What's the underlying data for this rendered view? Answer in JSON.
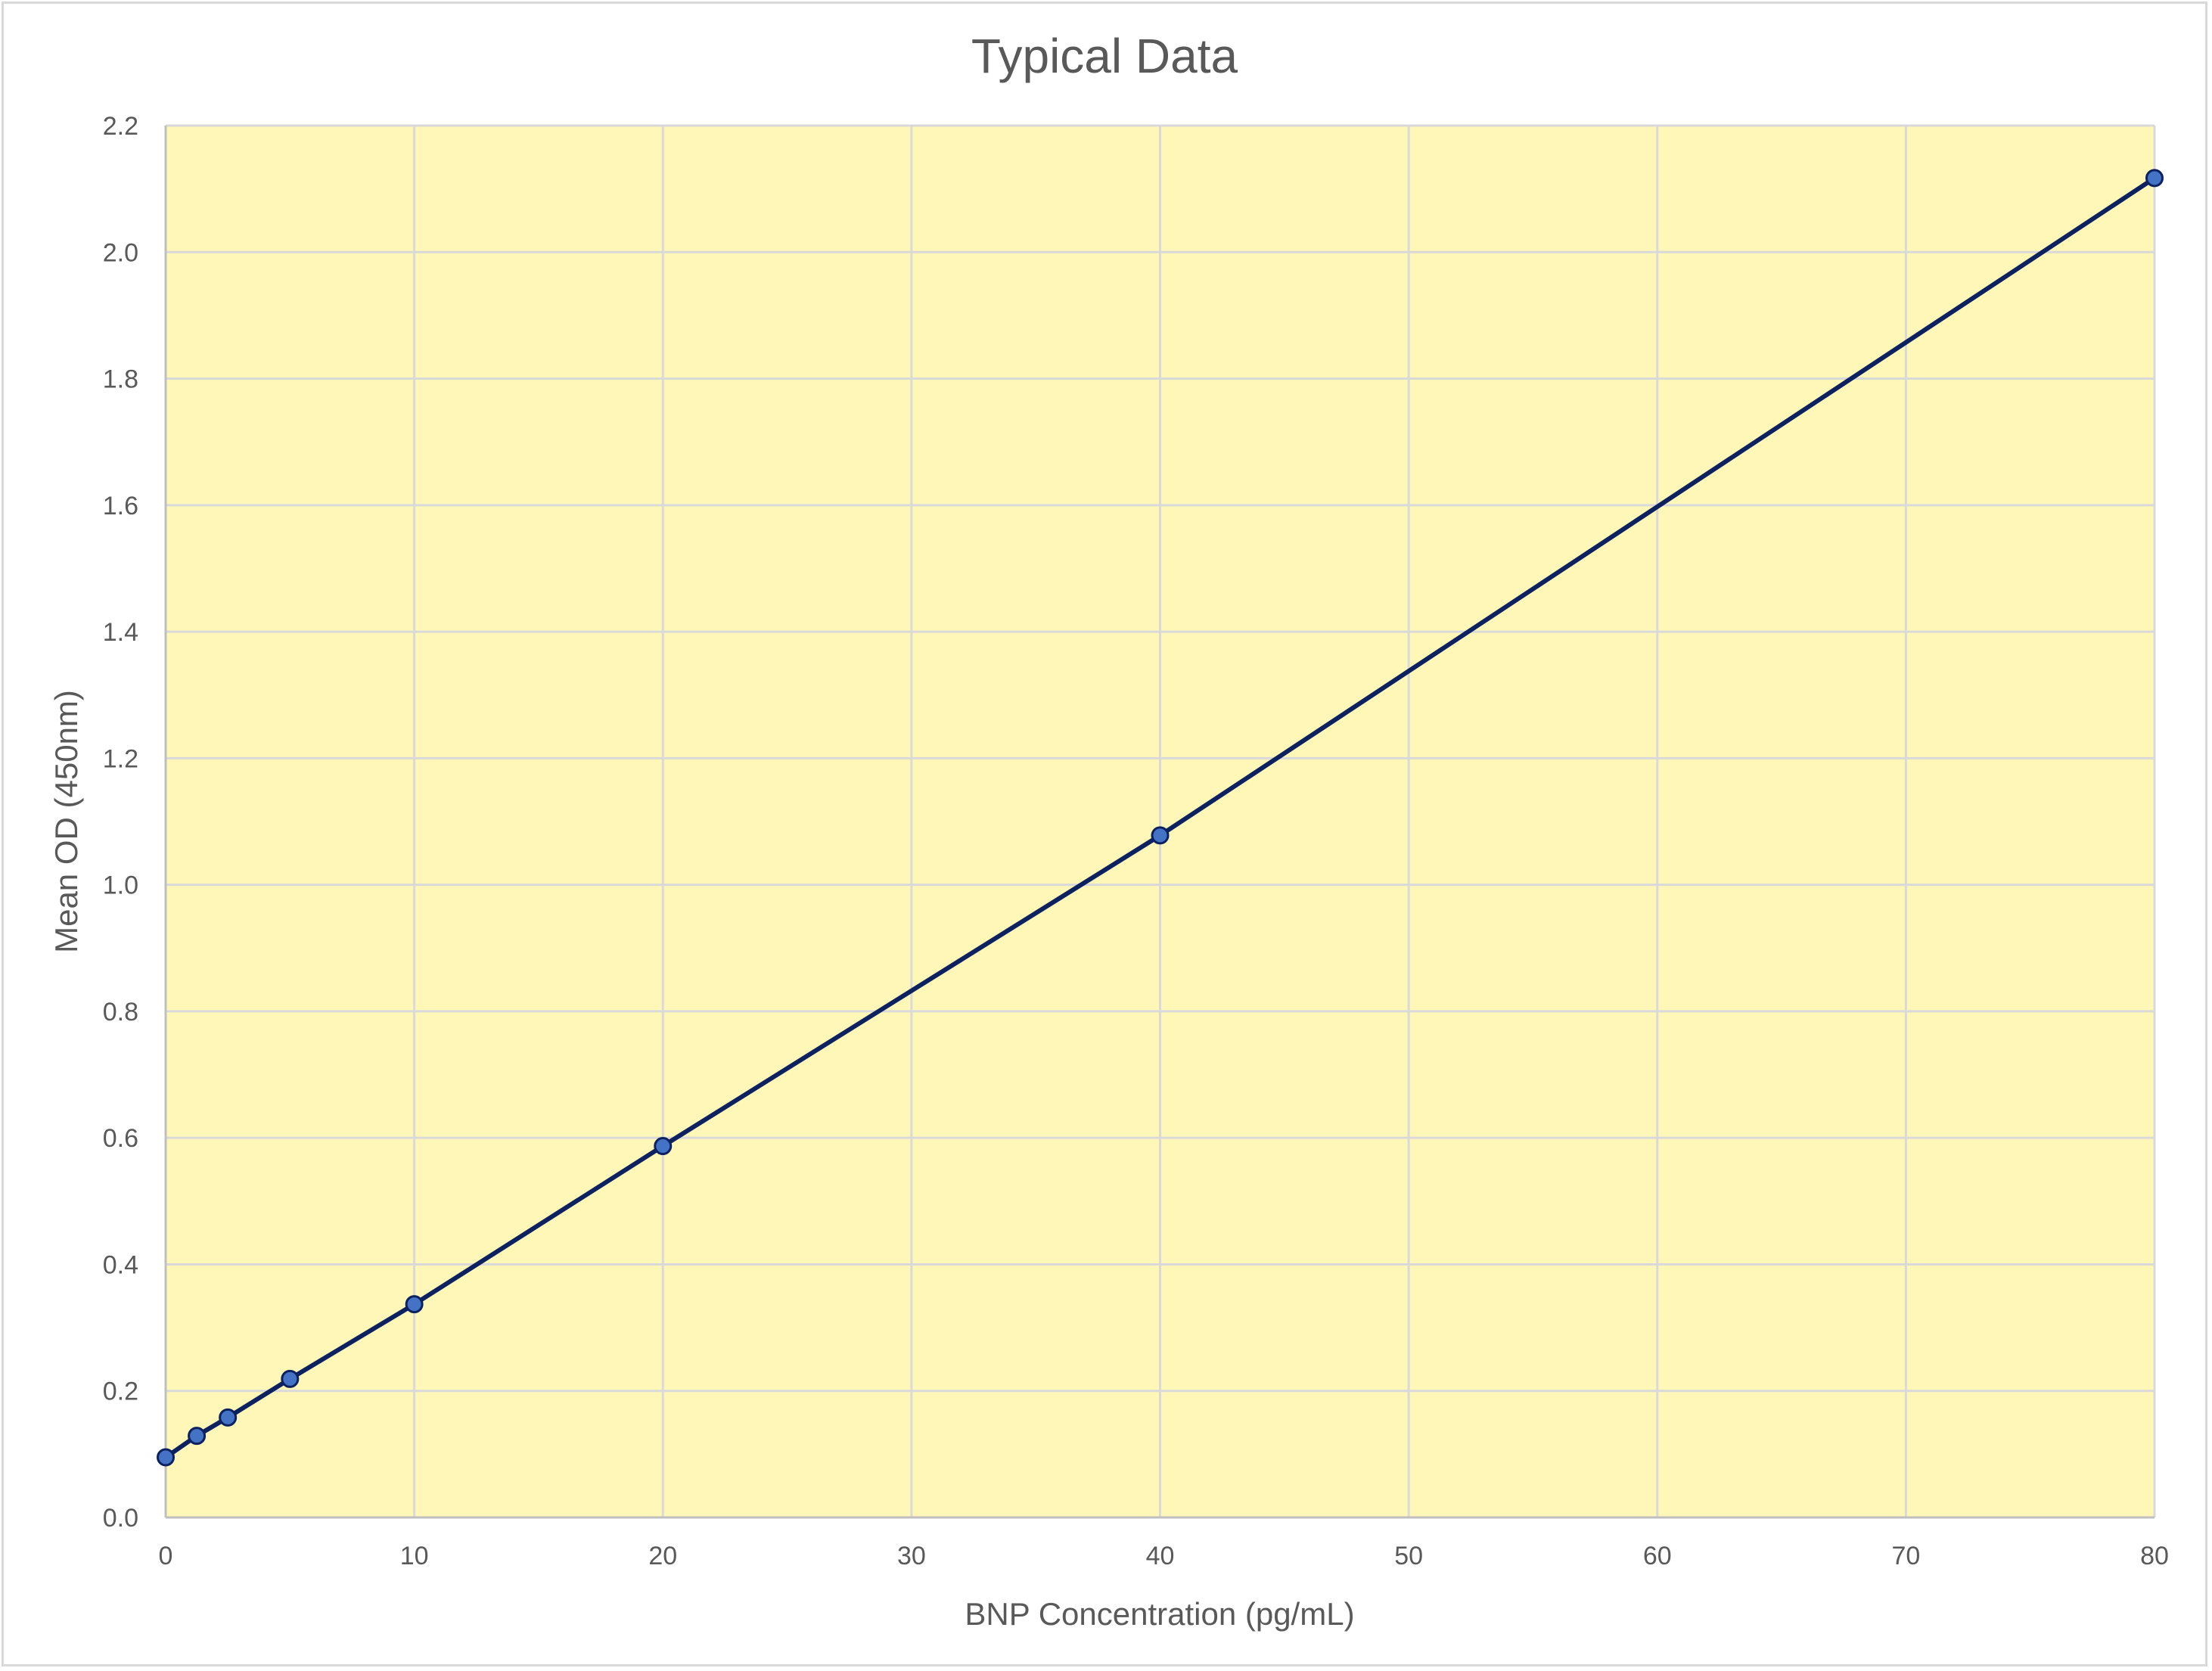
{
  "chart_data": {
    "type": "line",
    "title": "Typical Data",
    "xlabel": "BNP Concentration (pg/mL)",
    "ylabel": "Mean OD (450nm)",
    "xlim": [
      0,
      80
    ],
    "ylim": [
      0,
      2.2
    ],
    "xticks": [
      "0",
      "10",
      "20",
      "30",
      "40",
      "50",
      "60",
      "70",
      "80"
    ],
    "yticks": [
      "0.0",
      "0.2",
      "0.4",
      "0.6",
      "0.8",
      "1.0",
      "1.2",
      "1.4",
      "1.6",
      "1.8",
      "2.0",
      "2.2"
    ],
    "grid": true,
    "legend": "none",
    "series": [
      {
        "x": [
          0,
          1.25,
          2.5,
          5,
          10,
          20,
          40,
          80
        ],
        "y": [
          0.095,
          0.129,
          0.158,
          0.219,
          0.337,
          0.587,
          1.078,
          2.117
        ]
      }
    ],
    "colors": {
      "plot_background": "#fff7b8",
      "grid": "#d9d9d9",
      "line": "#0b2160",
      "marker_fill": "#4472c4",
      "text": "#595959"
    }
  }
}
